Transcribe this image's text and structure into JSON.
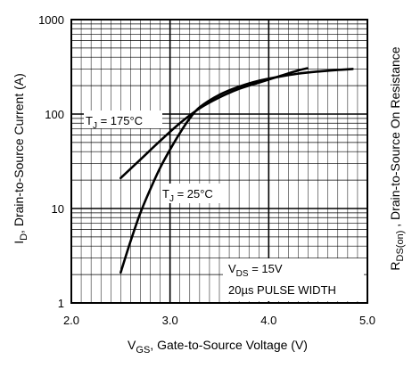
{
  "chart_data": {
    "type": "line",
    "x_scale": "linear",
    "y_scale": "log",
    "xlim": [
      2.0,
      5.0
    ],
    "ylim": [
      1,
      1000
    ],
    "x_ticks": [
      "2.0",
      "3.0",
      "4.0",
      "5.0"
    ],
    "y_ticks": [
      "1",
      "10",
      "100",
      "1000"
    ],
    "x_tick_values": [
      2.0,
      3.0,
      4.0,
      5.0
    ],
    "y_tick_values": [
      1,
      10,
      100,
      1000
    ],
    "grid": true,
    "xlabel": {
      "main": "V",
      "sub": "GS",
      "rest": ", Gate-to-Source Voltage (V)"
    },
    "ylabel": {
      "main": "I",
      "sub": "D",
      "rest": ", Drain-to-Source Current  (A)"
    },
    "right_label": {
      "main": "R",
      "sub": "DS(on)",
      "rest": " , Drain-to-Source On Resistance"
    },
    "series": [
      {
        "name": "T_J = 175°C",
        "label": {
          "main": "T",
          "sub": "J",
          "rest": " = 175°C"
        },
        "x": [
          2.5,
          2.7,
          2.9,
          3.1,
          3.3,
          3.5,
          3.7,
          3.9,
          4.1,
          4.3,
          4.39
        ],
        "y": [
          21,
          33,
          52,
          80,
          115,
          150,
          185,
          215,
          250,
          290,
          305
        ]
      },
      {
        "name": "T_J = 25°C",
        "label": {
          "main": "T",
          "sub": "J",
          "rest": " = 25°C"
        },
        "x": [
          2.5,
          2.6,
          2.7,
          2.8,
          2.9,
          3.0,
          3.1,
          3.2,
          3.3,
          3.5,
          3.7,
          3.9,
          4.1,
          4.3,
          4.5,
          4.7,
          4.85
        ],
        "y": [
          2.1,
          4.5,
          9,
          16,
          27,
          42,
          63,
          90,
          118,
          160,
          195,
          225,
          248,
          268,
          282,
          293,
          300
        ]
      }
    ],
    "annotation": {
      "vds": {
        "main": "V",
        "sub": "DS",
        "rest": " = 15V"
      },
      "pulse": "20µs PULSE WIDTH"
    }
  }
}
